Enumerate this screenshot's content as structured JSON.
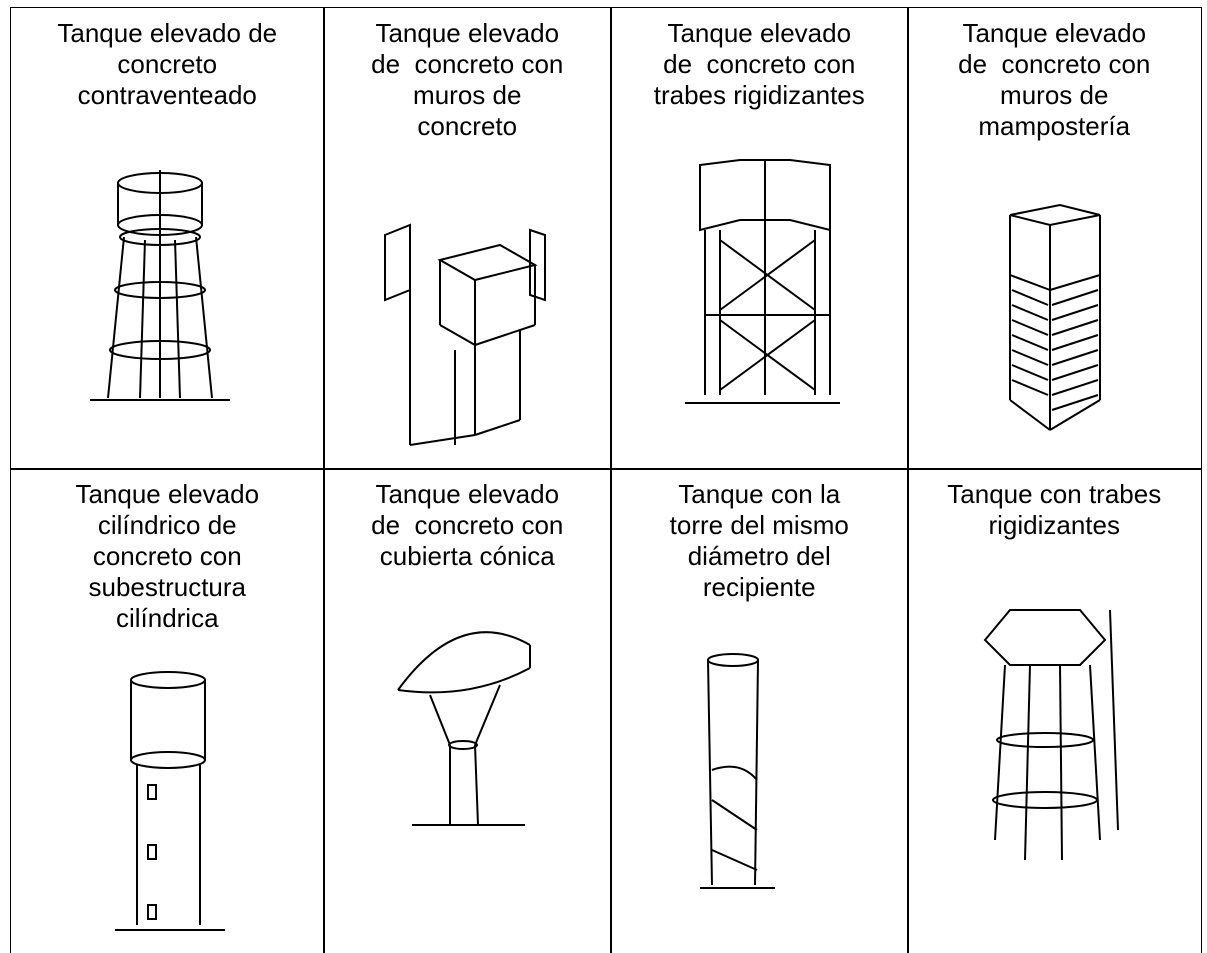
{
  "table": {
    "rows": [
      [
        {
          "lines": [
            "Tanque elevado de",
            "concreto",
            "contraventeado"
          ]
        },
        {
          "lines": [
            "Tanque elevado",
            "de  concreto con",
            "muros de",
            "concreto"
          ]
        },
        {
          "lines": [
            "Tanque elevado",
            "de  concreto con",
            "trabes rigidizantes"
          ]
        },
        {
          "lines": [
            "Tanque elevado",
            "de  concreto con",
            "muros de",
            "mampostería"
          ]
        }
      ],
      [
        {
          "lines": [
            "Tanque elevado",
            "cilíndrico de",
            "concreto con",
            "subestructura",
            "cilíndrica"
          ]
        },
        {
          "lines": [
            "Tanque elevado",
            "de  concreto con",
            "cubierta cónica"
          ]
        },
        {
          "lines": [
            "Tanque con la",
            "torre del mismo",
            "diámetro del",
            "recipiente"
          ]
        },
        {
          "lines": [
            "Tanque con trabes",
            "rigidizantes"
          ]
        }
      ]
    ]
  }
}
